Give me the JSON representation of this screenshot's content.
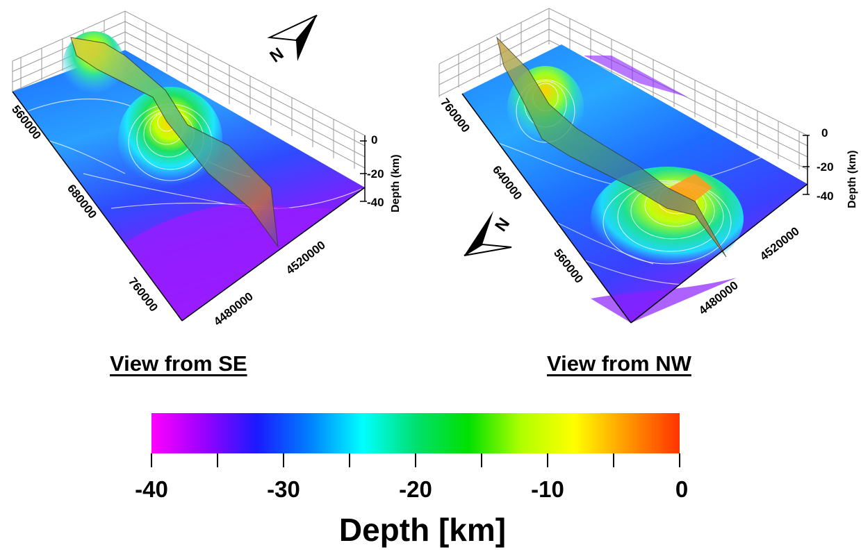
{
  "left_panel": {
    "title": "View from SE",
    "north_label": "N",
    "x_ticks": [
      "560000",
      "680000",
      "760000"
    ],
    "y_ticks": [
      "4480000",
      "4520000"
    ],
    "z_ticks": [
      "0",
      "-20",
      "-40"
    ],
    "z_axis_title": "Depth (km)"
  },
  "right_panel": {
    "title": "View from NW",
    "north_label": "N",
    "x_ticks": [
      "760000",
      "640000",
      "560000"
    ],
    "y_ticks": [
      "4480000",
      "4520000"
    ],
    "z_ticks": [
      "0",
      "-20",
      "-40"
    ],
    "z_axis_title": "Depth (km)"
  },
  "colorbar": {
    "title": "Depth [km]",
    "min": -40,
    "max": 0,
    "tick_labels": [
      "-40",
      "-30",
      "-20",
      "-10",
      "0"
    ],
    "colors": [
      "#ff00ff",
      "#9900ff",
      "#1a1aff",
      "#0080ff",
      "#00ffff",
      "#00e070",
      "#00e000",
      "#b0ff00",
      "#ffff00",
      "#ff9900",
      "#ff3300"
    ]
  }
}
